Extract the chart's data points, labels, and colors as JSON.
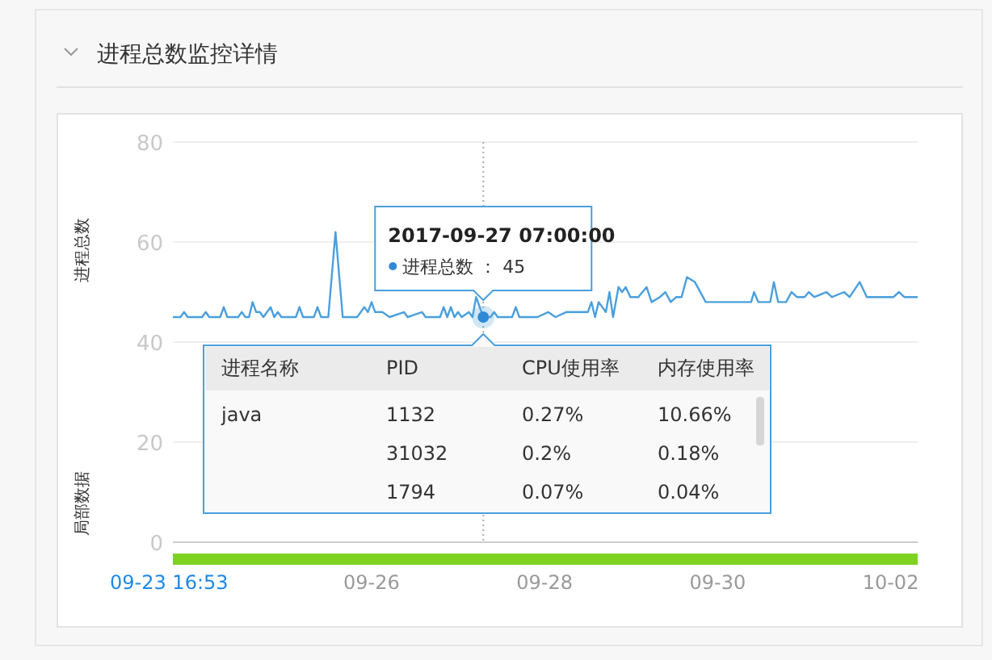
{
  "chart_data": {
    "type": "line",
    "title": "进程总数监控详情",
    "ylabel": "进程总数",
    "grid": "y",
    "xlim": [
      "2017-09-23T16:53",
      "2017-10-02T07:30"
    ],
    "ylim": [
      0,
      80
    ],
    "yticks": [
      0,
      20,
      40,
      60,
      80
    ],
    "xticks": [
      {
        "value": "2017-09-26",
        "label": "09-26"
      },
      {
        "value": "2017-09-28",
        "label": "09-28"
      },
      {
        "value": "2017-09-30",
        "label": "09-30"
      },
      {
        "value": "2017-10-02",
        "label": "10-02"
      }
    ],
    "ref_lines": [
      {
        "axis": "x",
        "value": "2017-09-27T07:00",
        "line_style": "dotted",
        "color": "#aaaaaa"
      }
    ],
    "annotations": [
      "2017-09-27 07:00:00",
      "进程总数 ： 45",
      "局部数据",
      "09-23 16:53",
      "进程名称",
      "PID",
      "CPU使用率",
      "内存使用率",
      "java",
      "1132",
      "0.27%",
      "10.66%",
      null,
      "31032",
      "0.2%",
      "0.18%",
      null,
      "1794",
      "0.07%",
      "0.04%"
    ],
    "series": [
      {
        "color": "#4a9fdc",
        "x": [
          "2017-09-23T16:53",
          "2017-09-23T19:00",
          "2017-09-23T20:00",
          "2017-09-23T21:00",
          "2017-09-24T01:00",
          "2017-09-24T02:00",
          "2017-09-24T03:00",
          "2017-09-24T06:00",
          "2017-09-24T07:00",
          "2017-09-24T08:00",
          "2017-09-24T11:00",
          "2017-09-24T12:00",
          "2017-09-24T13:00",
          "2017-09-24T14:00",
          "2017-09-24T15:00",
          "2017-09-24T16:00",
          "2017-09-24T17:00",
          "2017-09-24T18:00",
          "2017-09-24T20:00",
          "2017-09-24T21:00",
          "2017-09-24T22:00",
          "2017-09-24T23:00",
          "2017-09-25T03:00",
          "2017-09-25T04:00",
          "2017-09-25T05:00",
          "2017-09-25T08:00",
          "2017-09-25T09:00",
          "2017-09-25T10:00",
          "2017-09-25T12:00",
          "2017-09-25T14:00",
          "2017-09-25T16:00",
          "2017-09-25T20:00",
          "2017-09-25T22:00",
          "2017-09-25T23:00",
          "2017-09-26T00:00",
          "2017-09-26T01:00",
          "2017-09-26T03:00",
          "2017-09-26T05:00",
          "2017-09-26T09:00",
          "2017-09-26T10:00",
          "2017-09-26T14:00",
          "2017-09-26T15:00",
          "2017-09-26T19:00",
          "2017-09-26T20:00",
          "2017-09-26T21:00",
          "2017-09-26T22:00",
          "2017-09-26T23:00",
          "2017-09-27T00:00",
          "2017-09-27T01:00",
          "2017-09-27T03:00",
          "2017-09-27T04:00",
          "2017-09-27T05:00",
          "2017-09-27T07:00",
          "2017-09-27T09:00",
          "2017-09-27T10:00",
          "2017-09-27T11:00",
          "2017-09-27T15:00",
          "2017-09-27T16:00",
          "2017-09-27T17:00",
          "2017-09-27T22:00",
          "2017-09-28T01:00",
          "2017-09-28T03:00",
          "2017-09-28T06:00",
          "2017-09-28T12:00",
          "2017-09-28T13:00",
          "2017-09-28T14:00",
          "2017-09-28T15:00",
          "2017-09-28T17:00",
          "2017-09-28T18:00",
          "2017-09-28T19:00",
          "2017-09-28T20:30",
          "2017-09-28T21:30",
          "2017-09-28T22:30",
          "2017-09-28T23:48",
          "2017-09-29T02:00",
          "2017-09-29T04:18",
          "2017-09-29T05:42",
          "2017-09-29T08:00",
          "2017-09-29T09:30",
          "2017-09-29T11:00",
          "2017-09-29T12:30",
          "2017-09-29T14:00",
          "2017-09-29T15:30",
          "2017-09-29T17:42",
          "2017-09-29T20:42",
          "2017-09-30T09:18",
          "2017-09-30T10:06",
          "2017-09-30T11:18",
          "2017-09-30T14:36",
          "2017-09-30T15:36",
          "2017-09-30T16:48",
          "2017-09-30T19:00",
          "2017-09-30T20:30",
          "2017-09-30T22:00",
          "2017-10-01T00:06",
          "2017-10-01T01:18",
          "2017-10-01T02:48",
          "2017-10-01T06:12",
          "2017-10-01T07:42",
          "2017-10-01T11:06",
          "2017-10-01T12:36",
          "2017-10-01T15:24",
          "2017-10-01T17:24",
          "2017-10-02T00:48",
          "2017-10-02T02:18",
          "2017-10-02T03:48",
          "2017-10-02T07:30"
        ],
        "values": [
          45,
          45,
          46,
          45,
          45,
          46,
          45,
          45,
          47,
          45,
          45,
          46,
          45,
          45,
          48,
          46,
          46,
          45,
          47,
          45,
          46,
          45,
          45,
          47,
          45,
          45,
          47,
          45,
          45,
          62,
          45,
          45,
          47,
          46,
          48,
          46,
          46,
          45,
          46,
          45,
          46,
          45,
          45,
          47,
          45,
          47,
          45,
          46,
          45,
          46,
          45,
          49,
          45,
          45,
          46,
          45,
          45,
          47,
          45,
          45,
          46,
          45,
          46,
          46,
          48,
          45,
          48,
          46,
          50,
          45,
          51,
          50,
          51,
          49,
          49,
          51,
          48,
          49,
          50,
          48,
          49,
          49,
          53,
          52,
          48,
          48,
          50,
          48,
          48,
          52,
          48,
          48,
          50,
          49,
          49,
          50,
          49,
          50,
          49,
          50,
          49,
          52,
          49,
          49,
          50,
          49,
          49
        ]
      }
    ]
  }
}
